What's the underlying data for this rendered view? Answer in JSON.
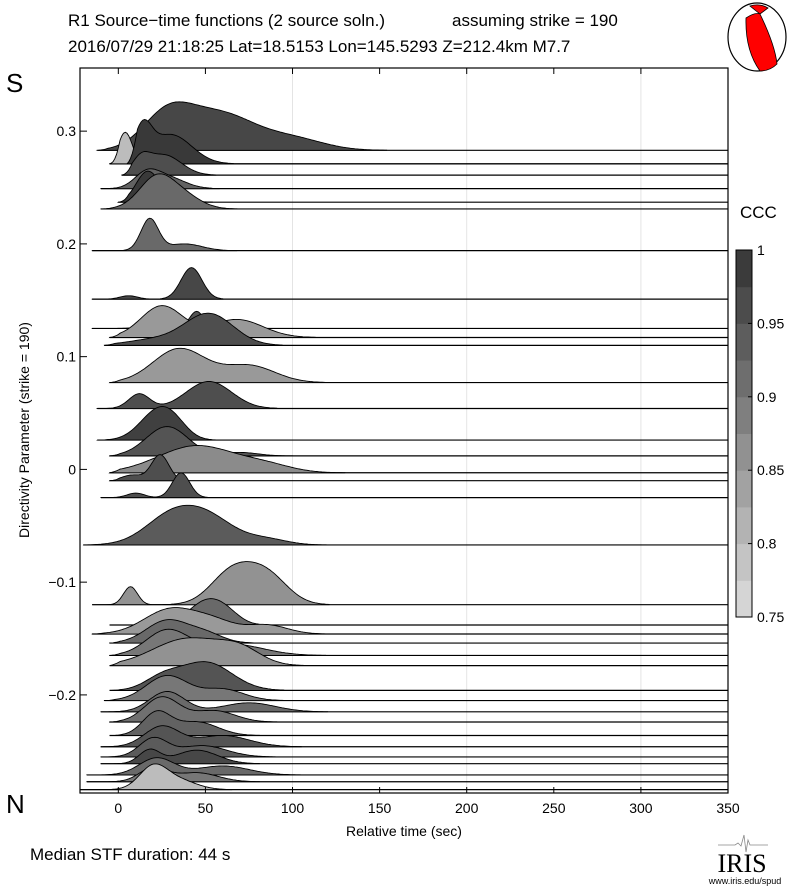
{
  "chart_data": {
    "type": "ridgeline",
    "title_line1": "R1 Source−time functions (2 source soln.)",
    "title_strike": "assuming strike = 190",
    "title_line2": "2016/07/29 21:18:25  Lat=18.5153 Lon=145.5293  Z=212.4km  M7.7",
    "xlabel": "Relative time (sec)",
    "ylabel": "Directivity Parameter (strike = 190)",
    "xlim": [
      -22,
      350
    ],
    "ylim": [
      -0.287,
      0.356
    ],
    "xticks": [
      0,
      50,
      100,
      150,
      200,
      250,
      300,
      350
    ],
    "xtick_labels": [
      "0",
      "50",
      "100",
      "150",
      "200",
      "250",
      "300",
      "350"
    ],
    "xgrid": [
      100,
      200,
      300
    ],
    "yticks": [
      0.3,
      0.2,
      0.1,
      0,
      -0.1,
      -0.2
    ],
    "ytick_labels": [
      "0.3",
      "0.2",
      "0.1",
      "0",
      "−0.1",
      "−0.2"
    ],
    "south_label": "S",
    "north_label": "N",
    "colorbar": {
      "title": "CCC",
      "range": [
        0.75,
        1
      ],
      "ticks": [
        1,
        0.95,
        0.9,
        0.85,
        0.8,
        0.75
      ],
      "tick_labels": [
        "1",
        "0.95",
        "0.9",
        "0.85",
        "0.8",
        "0.75"
      ],
      "bands": 10
    },
    "traces": [
      {
        "d": 0.283,
        "t0": -12,
        "ccc": 0.97,
        "humps": [
          [
            28,
            14,
            0.03
          ],
          [
            58,
            20,
            0.032
          ],
          [
            100,
            18,
            0.01
          ]
        ]
      },
      {
        "d": 0.271,
        "t0": -5,
        "ccc": 0.8,
        "humps": [
          [
            4,
            4,
            0.028
          ]
        ]
      },
      {
        "d": 0.271,
        "t0": 5,
        "ccc": 0.99,
        "humps": [
          [
            14,
            5,
            0.028
          ],
          [
            30,
            12,
            0.026
          ]
        ]
      },
      {
        "d": 0.261,
        "t0": 2,
        "ccc": 0.96,
        "humps": [
          [
            13,
            5,
            0.012
          ],
          [
            26,
            10,
            0.018
          ]
        ]
      },
      {
        "d": 0.249,
        "t0": -10,
        "ccc": 0.93,
        "humps": [
          [
            16,
            7,
            0.012
          ],
          [
            28,
            10,
            0.01
          ]
        ]
      },
      {
        "d": 0.237,
        "t0": 0,
        "ccc": 0.99,
        "humps": [
          [
            16,
            6,
            0.02
          ],
          [
            24,
            10,
            0.01
          ]
        ]
      },
      {
        "d": 0.231,
        "t0": -10,
        "ccc": 0.92,
        "humps": [
          [
            22,
            10,
            0.028
          ],
          [
            38,
            10,
            0.01
          ]
        ]
      },
      {
        "d": 0.194,
        "t0": -15,
        "ccc": 0.92,
        "humps": [
          [
            18,
            5,
            0.028
          ],
          [
            38,
            10,
            0.006
          ]
        ]
      },
      {
        "d": 0.151,
        "t0": -15,
        "ccc": 0.97,
        "humps": [
          [
            6,
            5,
            0.003
          ],
          [
            42,
            6,
            0.028
          ]
        ]
      },
      {
        "d": 0.125,
        "t0": -15,
        "ccc": 0.95,
        "humps": [
          [
            45,
            4,
            0.015
          ],
          [
            24,
            10,
            0.002
          ]
        ]
      },
      {
        "d": 0.117,
        "t0": -5,
        "ccc": 0.85,
        "humps": [
          [
            25,
            12,
            0.028
          ],
          [
            68,
            15,
            0.016
          ]
        ]
      },
      {
        "d": 0.11,
        "t0": -8,
        "ccc": 0.96,
        "humps": [
          [
            20,
            15,
            0.005
          ],
          [
            52,
            14,
            0.028
          ]
        ]
      },
      {
        "d": 0.077,
        "t0": -5,
        "ccc": 0.85,
        "humps": [
          [
            35,
            15,
            0.03
          ],
          [
            75,
            15,
            0.015
          ]
        ]
      },
      {
        "d": 0.054,
        "t0": -12,
        "ccc": 0.96,
        "humps": [
          [
            12,
            6,
            0.013
          ],
          [
            52,
            13,
            0.024
          ]
        ]
      },
      {
        "d": 0.026,
        "t0": -12,
        "ccc": 0.98,
        "humps": [
          [
            22,
            10,
            0.024
          ],
          [
            32,
            8,
            0.01
          ]
        ]
      },
      {
        "d": 0.012,
        "t0": -5,
        "ccc": 0.95,
        "humps": [
          [
            28,
            12,
            0.026
          ],
          [
            70,
            10,
            0.003
          ]
        ]
      },
      {
        "d": -0.003,
        "t0": -5,
        "ccc": 0.87,
        "humps": [
          [
            45,
            22,
            0.024
          ],
          [
            85,
            15,
            0.006
          ]
        ]
      },
      {
        "d": -0.01,
        "t0": -5,
        "ccc": 0.96,
        "humps": [
          [
            8,
            6,
            0.005
          ],
          [
            24,
            5,
            0.023
          ]
        ]
      },
      {
        "d": -0.025,
        "t0": -10,
        "ccc": 0.96,
        "humps": [
          [
            10,
            5,
            0.004
          ],
          [
            36,
            5,
            0.022
          ]
        ]
      },
      {
        "d": -0.067,
        "t0": -20,
        "ccc": 0.94,
        "humps": [
          [
            30,
            15,
            0.024
          ],
          [
            52,
            15,
            0.022
          ],
          [
            85,
            12,
            0.005
          ]
        ]
      },
      {
        "d": -0.12,
        "t0": -15,
        "ccc": 0.86,
        "humps": [
          [
            7,
            4,
            0.016
          ],
          [
            65,
            12,
            0.028
          ],
          [
            85,
            12,
            0.026
          ]
        ]
      },
      {
        "d": -0.138,
        "t0": -5,
        "ccc": 0.92,
        "humps": [
          [
            50,
            10,
            0.02
          ],
          [
            62,
            8,
            0.008
          ]
        ]
      },
      {
        "d": -0.146,
        "t0": -15,
        "ccc": 0.85,
        "humps": [
          [
            30,
            15,
            0.022
          ],
          [
            55,
            12,
            0.01
          ],
          [
            85,
            12,
            0.008
          ]
        ]
      },
      {
        "d": -0.154,
        "t0": -5,
        "ccc": 0.92,
        "humps": [
          [
            28,
            12,
            0.02
          ],
          [
            50,
            10,
            0.008
          ]
        ]
      },
      {
        "d": -0.165,
        "t0": -5,
        "ccc": 0.9,
        "humps": [
          [
            28,
            12,
            0.022
          ],
          [
            65,
            18,
            0.01
          ]
        ]
      },
      {
        "d": -0.174,
        "t0": -5,
        "ccc": 0.86,
        "humps": [
          [
            40,
            20,
            0.024
          ],
          [
            70,
            12,
            0.012
          ]
        ]
      },
      {
        "d": -0.196,
        "t0": -5,
        "ccc": 0.95,
        "humps": [
          [
            50,
            15,
            0.025
          ],
          [
            25,
            10,
            0.01
          ]
        ]
      },
      {
        "d": -0.205,
        "t0": -8,
        "ccc": 0.9,
        "humps": [
          [
            28,
            12,
            0.022
          ],
          [
            60,
            12,
            0.01
          ]
        ]
      },
      {
        "d": -0.215,
        "t0": -10,
        "ccc": 0.92,
        "humps": [
          [
            28,
            10,
            0.018
          ],
          [
            75,
            15,
            0.008
          ]
        ]
      },
      {
        "d": -0.224,
        "t0": -5,
        "ccc": 0.91,
        "humps": [
          [
            25,
            10,
            0.022
          ],
          [
            55,
            12,
            0.01
          ]
        ]
      },
      {
        "d": -0.236,
        "t0": -5,
        "ccc": 0.93,
        "humps": [
          [
            22,
            8,
            0.02
          ],
          [
            45,
            12,
            0.012
          ]
        ]
      },
      {
        "d": -0.246,
        "t0": -10,
        "ccc": 0.95,
        "humps": [
          [
            25,
            10,
            0.018
          ],
          [
            60,
            15,
            0.01
          ]
        ]
      },
      {
        "d": -0.255,
        "t0": -10,
        "ccc": 0.94,
        "humps": [
          [
            20,
            8,
            0.016
          ],
          [
            48,
            14,
            0.01
          ]
        ]
      },
      {
        "d": -0.261,
        "t0": -10,
        "ccc": 0.97,
        "humps": [
          [
            18,
            6,
            0.012
          ],
          [
            45,
            12,
            0.012
          ]
        ]
      },
      {
        "d": -0.271,
        "t0": -18,
        "ccc": 0.92,
        "humps": [
          [
            22,
            10,
            0.015
          ],
          [
            60,
            15,
            0.008
          ]
        ]
      },
      {
        "d": -0.277,
        "t0": -18,
        "ccc": 0.9,
        "humps": [
          [
            20,
            8,
            0.012
          ],
          [
            45,
            12,
            0.008
          ]
        ]
      },
      {
        "d": -0.284,
        "t0": -22,
        "ccc": 0.8,
        "humps": [
          [
            20,
            8,
            0.02
          ],
          [
            35,
            10,
            0.008
          ]
        ]
      }
    ]
  },
  "footer": {
    "median_duration": "Median STF duration: 44 s"
  },
  "logo": {
    "text": "IRIS",
    "url_text": "www.iris.edu/spud"
  },
  "colors": {
    "beachball_red": "#ff0000"
  }
}
